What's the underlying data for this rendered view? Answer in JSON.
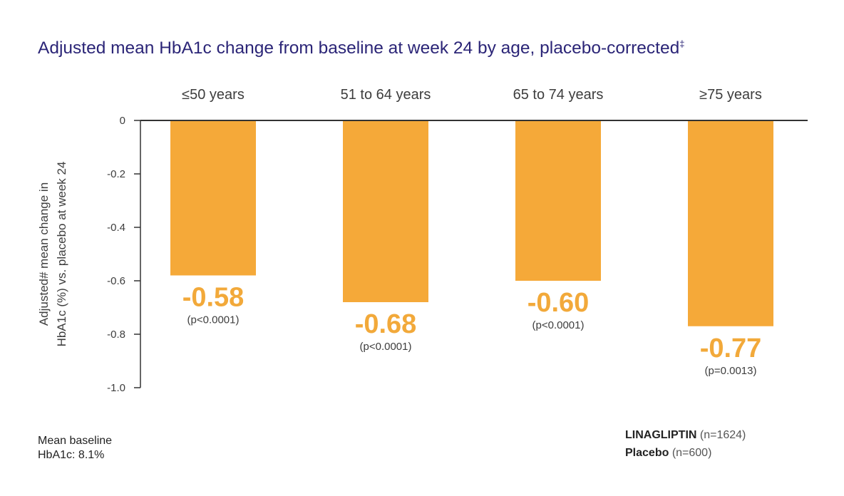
{
  "title": "Adjusted mean HbA1c change from baseline at week 24 by age, placebo-corrected",
  "title_mark": "‡",
  "footnote": {
    "line1": "Mean baseline",
    "line2": "HbA1c: 8.1%"
  },
  "legend": {
    "drug_name": "LINAGLIPTIN",
    "drug_n": "(n=1624)",
    "placebo_name": "Placebo",
    "placebo_n": "(n=600)"
  },
  "colors": {
    "bar": "#f5a939",
    "value_text": "#f2a93a",
    "title": "#2b2577",
    "axis": "#333333"
  },
  "chart_data": {
    "type": "bar",
    "ylabel_line1": "Adjusted# mean change in",
    "ylabel_line2": "HbA1c (%) vs. placebo at week 24",
    "ylim": [
      -1.0,
      0
    ],
    "yticks": [
      "0",
      "-0.2",
      "-0.4",
      "-0.6",
      "-0.8",
      "-1.0"
    ],
    "ytick_values": [
      0,
      -0.2,
      -0.4,
      -0.6,
      -0.8,
      -1.0
    ],
    "categories": [
      "≤50 years",
      "51 to 64 years",
      "65 to 74 years",
      "≥75 years"
    ],
    "values": [
      -0.58,
      -0.68,
      -0.6,
      -0.77
    ],
    "value_labels": [
      "-0.58",
      "-0.68",
      "-0.60",
      "-0.77"
    ],
    "p_values": [
      "(p<0.0001)",
      "(p<0.0001)",
      "(p<0.0001)",
      "(p=0.0013)"
    ],
    "grid": false
  }
}
